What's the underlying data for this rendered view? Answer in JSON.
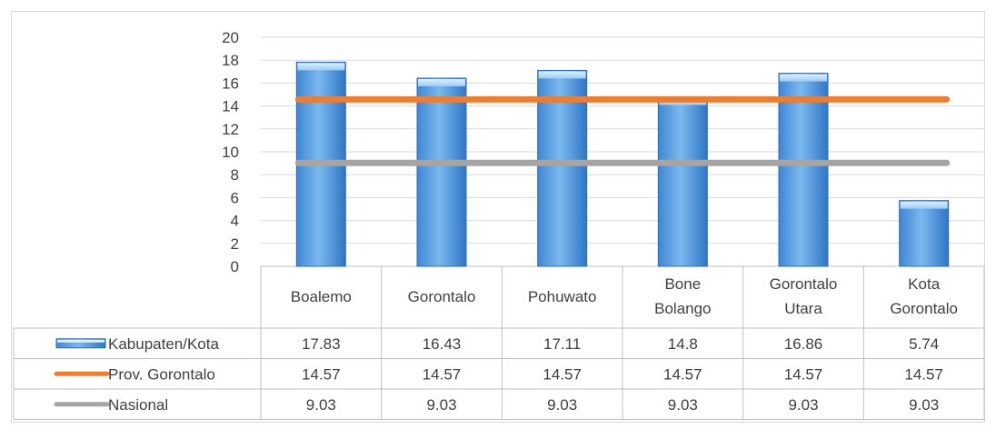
{
  "chart_data": {
    "type": "bar",
    "categories": [
      [
        "Boalemo"
      ],
      [
        "Gorontalo"
      ],
      [
        "Pohuwato"
      ],
      [
        "Bone",
        "Bolango"
      ],
      [
        "Gorontalo",
        "Utara"
      ],
      [
        "Kota",
        "Gorontalo"
      ]
    ],
    "ylim": [
      0,
      20
    ],
    "yticks": [
      "0",
      "2",
      "4",
      "6",
      "8",
      "10",
      "12",
      "14",
      "16",
      "18",
      "20"
    ],
    "grid": true,
    "legend": "data-table",
    "series": [
      {
        "name": "Kabupaten/Kota",
        "type": "bar",
        "color": "#5B9BD5",
        "values": [
          17.83,
          16.43,
          17.11,
          14.8,
          16.86,
          5.74
        ],
        "labels": [
          "17.83",
          "16.43",
          "17.11",
          "14.8",
          "16.86",
          "5.74"
        ]
      },
      {
        "name": "Prov. Gorontalo",
        "type": "line",
        "color": "#ED7D31",
        "values": [
          14.57,
          14.57,
          14.57,
          14.57,
          14.57,
          14.57
        ],
        "labels": [
          "14.57",
          "14.57",
          "14.57",
          "14.57",
          "14.57",
          "14.57"
        ]
      },
      {
        "name": "Nasional",
        "type": "line",
        "color": "#A5A5A5",
        "values": [
          9.03,
          9.03,
          9.03,
          9.03,
          9.03,
          9.03
        ],
        "labels": [
          "9.03",
          "9.03",
          "9.03",
          "9.03",
          "9.03",
          "9.03"
        ]
      }
    ]
  }
}
